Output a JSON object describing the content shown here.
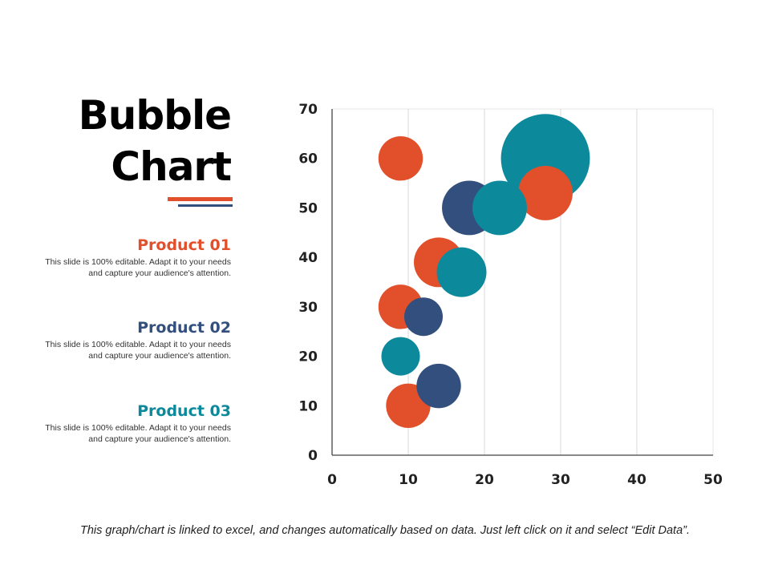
{
  "title_line1": "Bubble",
  "title_line2": "Chart",
  "products": [
    {
      "name": "Product 01",
      "color": "#E2502B",
      "line1": "This slide is 100% editable. Adapt it to your needs",
      "line2": "and capture your audience's attention."
    },
    {
      "name": "Product 02",
      "color": "#324F7E",
      "line1": "This slide is 100% editable. Adapt it to your needs",
      "line2": "and capture your audience's attention."
    },
    {
      "name": "Product 03",
      "color": "#0C8A9C",
      "line1": "This slide is 100% editable. Adapt it to your needs",
      "line2": "and capture your audience's attention."
    }
  ],
  "footer": "This graph/chart is linked to excel, and changes automatically based on data. Just left click on it and select “Edit Data”.",
  "chart_data": {
    "type": "scatter",
    "subtype": "bubble",
    "xlim": [
      0,
      50
    ],
    "ylim": [
      0,
      70
    ],
    "xticks": [
      "0",
      "10",
      "20",
      "30",
      "40",
      "50"
    ],
    "yticks": [
      "0",
      "10",
      "20",
      "30",
      "40",
      "50",
      "60",
      "70"
    ],
    "grid": "vertical",
    "series": [
      {
        "name": "Product 01",
        "color": "#E2502B",
        "points": [
          {
            "x": 9,
            "y": 60,
            "size": 8
          },
          {
            "x": 14,
            "y": 39,
            "size": 10
          },
          {
            "x": 9,
            "y": 30,
            "size": 8
          },
          {
            "x": 10,
            "y": 10,
            "size": 8
          },
          {
            "x": 28,
            "y": 53,
            "size": 12
          }
        ]
      },
      {
        "name": "Product 02",
        "color": "#324F7E",
        "points": [
          {
            "x": 18,
            "y": 50,
            "size": 12
          },
          {
            "x": 12,
            "y": 28,
            "size": 6
          },
          {
            "x": 14,
            "y": 14,
            "size": 8
          }
        ]
      },
      {
        "name": "Product 03",
        "color": "#0C8A9C",
        "points": [
          {
            "x": 28,
            "y": 60,
            "size": 32
          },
          {
            "x": 22,
            "y": 50,
            "size": 12
          },
          {
            "x": 17,
            "y": 37,
            "size": 10
          },
          {
            "x": 9,
            "y": 20,
            "size": 6
          }
        ]
      }
    ]
  }
}
